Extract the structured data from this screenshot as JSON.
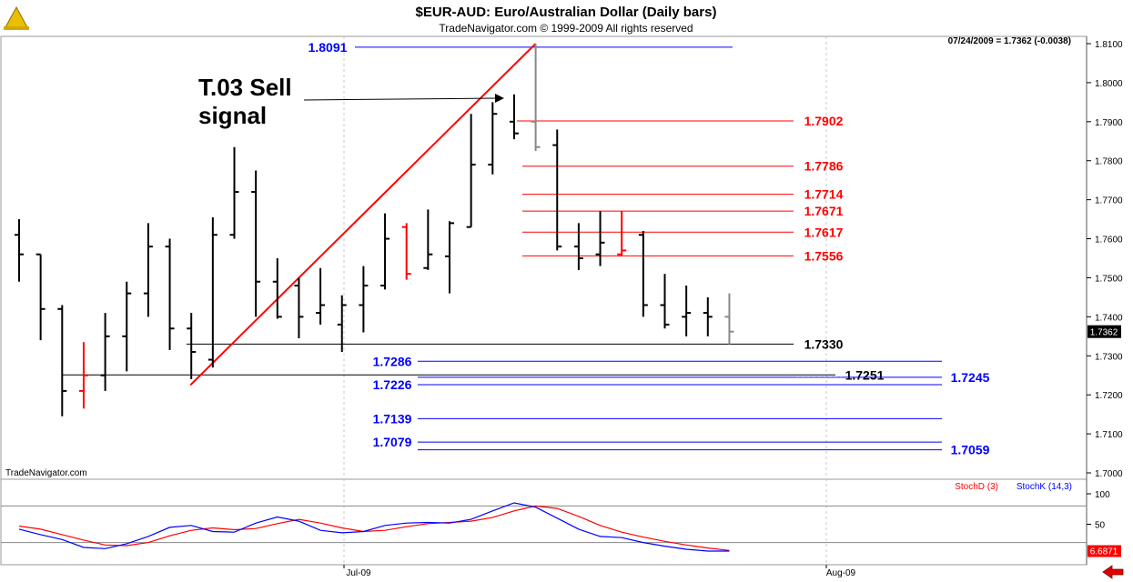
{
  "header": {
    "title": "$EUR-AUD:  Euro/Australian Dollar  (Daily bars)",
    "subtitle": "TradeNavigator.com © 1999-2009 All rights reserved",
    "readout": "07/24/2009 = 1.7362 (-0.0038)",
    "watermark": "TradeNavigator.com"
  },
  "chart_data": {
    "type": "ohlc",
    "ylim": [
      1.695,
      1.812
    ],
    "ticks": [
      "1.7000",
      "1.7100",
      "1.7200",
      "1.7300",
      "1.7400",
      "1.7500",
      "1.7600",
      "1.7700",
      "1.7800",
      "1.7900",
      "1.8000",
      "1.8100"
    ],
    "x_labels": [
      "Jul-09",
      "Aug-09"
    ],
    "last_price_label": "1.7362",
    "bars": [
      {
        "o": 1.761,
        "h": 1.765,
        "l": 1.749,
        "c": 1.756,
        "color": "black"
      },
      {
        "o": 1.756,
        "h": 1.756,
        "l": 1.734,
        "c": 1.742,
        "color": "black"
      },
      {
        "o": 1.742,
        "h": 1.743,
        "l": 1.7145,
        "c": 1.721,
        "color": "black"
      },
      {
        "o": 1.721,
        "h": 1.7335,
        "l": 1.7165,
        "c": 1.725,
        "color": "red"
      },
      {
        "o": 1.725,
        "h": 1.741,
        "l": 1.721,
        "c": 1.735,
        "color": "black"
      },
      {
        "o": 1.735,
        "h": 1.749,
        "l": 1.726,
        "c": 1.746,
        "color": "black"
      },
      {
        "o": 1.746,
        "h": 1.764,
        "l": 1.74,
        "c": 1.758,
        "color": "black"
      },
      {
        "o": 1.758,
        "h": 1.76,
        "l": 1.7315,
        "c": 1.737,
        "color": "black"
      },
      {
        "o": 1.737,
        "h": 1.741,
        "l": 1.724,
        "c": 1.731,
        "color": "black"
      },
      {
        "o": 1.729,
        "h": 1.7655,
        "l": 1.727,
        "c": 1.761,
        "color": "black"
      },
      {
        "o": 1.761,
        "h": 1.7835,
        "l": 1.76,
        "c": 1.772,
        "color": "black"
      },
      {
        "o": 1.772,
        "h": 1.7775,
        "l": 1.74,
        "c": 1.749,
        "color": "black"
      },
      {
        "o": 1.749,
        "h": 1.755,
        "l": 1.7395,
        "c": 1.74,
        "color": "black"
      },
      {
        "o": 1.748,
        "h": 1.75,
        "l": 1.7345,
        "c": 1.74,
        "color": "black"
      },
      {
        "o": 1.741,
        "h": 1.7525,
        "l": 1.738,
        "c": 1.743,
        "color": "black"
      },
      {
        "o": 1.738,
        "h": 1.7455,
        "l": 1.731,
        "c": 1.743,
        "color": "black"
      },
      {
        "o": 1.743,
        "h": 1.753,
        "l": 1.736,
        "c": 1.748,
        "color": "black"
      },
      {
        "o": 1.748,
        "h": 1.7665,
        "l": 1.747,
        "c": 1.76,
        "color": "black"
      },
      {
        "o": 1.763,
        "h": 1.764,
        "l": 1.7495,
        "c": 1.751,
        "color": "red"
      },
      {
        "o": 1.7525,
        "h": 1.7675,
        "l": 1.752,
        "c": 1.756,
        "color": "black"
      },
      {
        "o": 1.7555,
        "h": 1.7645,
        "l": 1.746,
        "c": 1.764,
        "color": "black"
      },
      {
        "o": 1.763,
        "h": 1.792,
        "l": 1.763,
        "c": 1.779,
        "color": "black"
      },
      {
        "o": 1.779,
        "h": 1.795,
        "l": 1.7765,
        "c": 1.792,
        "color": "black"
      },
      {
        "o": 1.79,
        "h": 1.797,
        "l": 1.7855,
        "c": 1.787,
        "color": "black"
      },
      {
        "o": 1.79,
        "h": 1.81,
        "l": 1.7825,
        "c": 1.7835,
        "color": "gray"
      },
      {
        "o": 1.784,
        "h": 1.788,
        "l": 1.757,
        "c": 1.758,
        "color": "black"
      },
      {
        "o": 1.758,
        "h": 1.764,
        "l": 1.752,
        "c": 1.755,
        "color": "black"
      },
      {
        "o": 1.756,
        "h": 1.767,
        "l": 1.753,
        "c": 1.759,
        "color": "black"
      },
      {
        "o": 1.756,
        "h": 1.767,
        "l": 1.7555,
        "c": 1.757,
        "color": "red"
      },
      {
        "o": 1.761,
        "h": 1.762,
        "l": 1.74,
        "c": 1.743,
        "color": "black"
      },
      {
        "o": 1.743,
        "h": 1.751,
        "l": 1.737,
        "c": 1.738,
        "color": "black"
      },
      {
        "o": 1.74,
        "h": 1.748,
        "l": 1.735,
        "c": 1.741,
        "color": "black"
      },
      {
        "o": 1.741,
        "h": 1.745,
        "l": 1.735,
        "c": 1.74,
        "color": "black"
      },
      {
        "o": 1.74,
        "h": 1.746,
        "l": 1.733,
        "c": 1.7362,
        "color": "gray"
      }
    ],
    "levels": [
      {
        "value": 1.8091,
        "label": "1.8091",
        "color": "#0000ff"
      },
      {
        "value": 1.7902,
        "label": "1.7902",
        "color": "#ff0000"
      },
      {
        "value": 1.7786,
        "label": "1.7786",
        "color": "#ff0000"
      },
      {
        "value": 1.7714,
        "label": "1.7714",
        "color": "#ff0000"
      },
      {
        "value": 1.7671,
        "label": "1.7671",
        "color": "#ff0000"
      },
      {
        "value": 1.7617,
        "label": "1.7617",
        "color": "#ff0000"
      },
      {
        "value": 1.7556,
        "label": "1.7556",
        "color": "#ff0000"
      },
      {
        "value": 1.733,
        "label": "1.7330",
        "color": "#000000"
      },
      {
        "value": 1.7286,
        "label": "1.7286",
        "color": "#0000ff"
      },
      {
        "value": 1.7251,
        "label": "1.7251",
        "color": "#000000"
      },
      {
        "value": 1.7245,
        "label": "1.7245",
        "color": "#0000ff"
      },
      {
        "value": 1.7226,
        "label": "1.7226",
        "color": "#0000ff"
      },
      {
        "value": 1.7139,
        "label": "1.7139",
        "color": "#0000ff"
      },
      {
        "value": 1.7079,
        "label": "1.7079",
        "color": "#0000ff"
      },
      {
        "value": 1.7059,
        "label": "1.7059",
        "color": "#0000ff"
      }
    ],
    "annotation": {
      "line1": "T.03 Sell",
      "line2": "signal"
    },
    "trendline": {
      "from_bar": 8,
      "from_value": 1.7225,
      "to_bar": 24,
      "to_value": 1.81,
      "color": "#ff0000"
    },
    "stochastic": {
      "legend_d": "StochD (3)",
      "legend_k": "StochK (14,3)",
      "ticks": [
        "100",
        "50"
      ],
      "reference_levels": [
        80,
        20
      ],
      "last_value_label": "6.6871",
      "colors": {
        "d": "#ff0000",
        "k": "#0000ff"
      },
      "k": [
        42,
        33,
        25,
        12,
        10,
        18,
        30,
        45,
        48,
        38,
        37,
        52,
        62,
        55,
        40,
        36,
        38,
        48,
        52,
        53,
        52,
        58,
        72,
        85,
        78,
        60,
        42,
        30,
        28,
        20,
        14,
        9,
        6,
        6
      ],
      "d": [
        47,
        42,
        33,
        24,
        16,
        15,
        20,
        31,
        40,
        44,
        41,
        43,
        51,
        58,
        52,
        44,
        38,
        40,
        46,
        51,
        53,
        55,
        61,
        72,
        80,
        76,
        63,
        48,
        37,
        29,
        22,
        16,
        11,
        7
      ]
    }
  }
}
